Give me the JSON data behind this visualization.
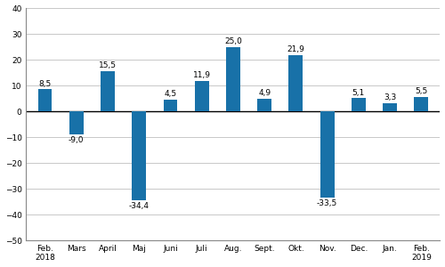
{
  "categories": [
    "Feb.\n2018",
    "Mars",
    "April",
    "Maj",
    "Juni",
    "Juli",
    "Aug.",
    "Sept.",
    "Okt.",
    "Nov.",
    "Dec.",
    "Jan.",
    "Feb.\n2019"
  ],
  "values": [
    8.5,
    -9.0,
    15.5,
    -34.4,
    4.5,
    11.9,
    25.0,
    4.9,
    21.9,
    -33.5,
    5.1,
    3.3,
    5.5
  ],
  "bar_color": "#1871a8",
  "ylim": [
    -50,
    40
  ],
  "yticks": [
    -50,
    -40,
    -30,
    -20,
    -10,
    0,
    10,
    20,
    30,
    40
  ],
  "background_color": "#ffffff",
  "grid_color": "#c8c8c8",
  "value_fontsize": 6.5,
  "tick_fontsize": 6.5,
  "bar_width": 0.45
}
